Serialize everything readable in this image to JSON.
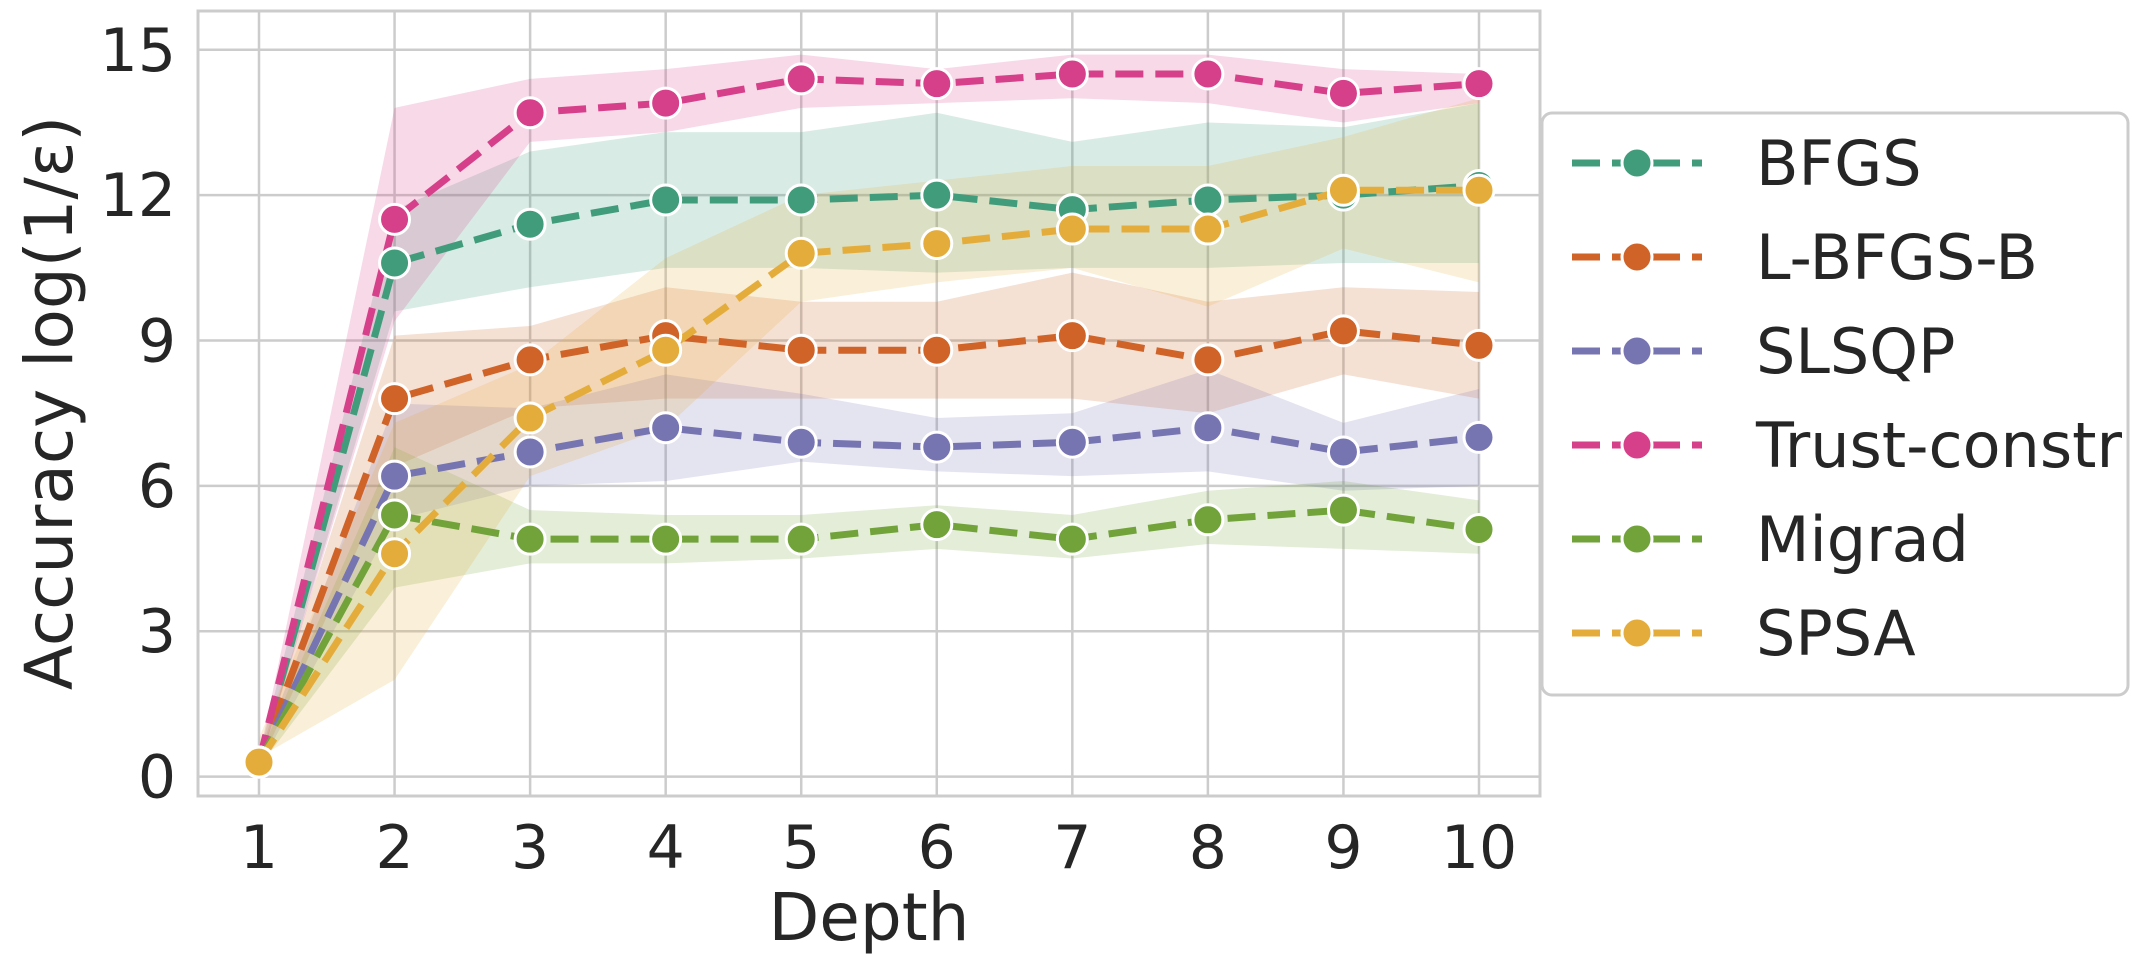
{
  "chart_data": {
    "type": "line",
    "title": "",
    "xlabel": "Depth",
    "ylabel": "Accuracy log(1/ε)",
    "x": [
      1,
      2,
      3,
      4,
      5,
      6,
      7,
      8,
      9,
      10
    ],
    "xticks": [
      "1",
      "2",
      "3",
      "4",
      "5",
      "6",
      "7",
      "8",
      "9",
      "10"
    ],
    "yticks": [
      "0",
      "3",
      "6",
      "9",
      "12",
      "15"
    ],
    "ytick_values": [
      0,
      3,
      6,
      9,
      12,
      15
    ],
    "xlim": [
      0.55,
      10.45
    ],
    "ylim": [
      -0.4,
      15.8
    ],
    "grid": true,
    "legend_position": "right",
    "series": [
      {
        "name": "BFGS",
        "color": "#419c7c",
        "values": [
          0.3,
          10.6,
          11.4,
          11.9,
          11.9,
          12.0,
          11.7,
          11.9,
          12.0,
          12.2
        ],
        "lower": [
          0.2,
          9.6,
          10.1,
          10.5,
          10.5,
          10.4,
          10.5,
          10.5,
          10.6,
          10.6
        ],
        "upper": [
          0.4,
          11.7,
          12.9,
          13.3,
          13.3,
          13.7,
          13.1,
          13.5,
          13.4,
          13.9
        ]
      },
      {
        "name": "L-BFGS-B",
        "color": "#cf6328",
        "values": [
          0.3,
          7.8,
          8.6,
          9.1,
          8.8,
          8.8,
          9.1,
          8.6,
          9.2,
          8.9
        ],
        "lower": [
          0.2,
          6.4,
          7.6,
          7.8,
          7.8,
          7.8,
          7.8,
          7.5,
          8.3,
          7.8
        ],
        "upper": [
          0.4,
          9.1,
          9.3,
          10.1,
          9.8,
          9.8,
          10.4,
          9.8,
          10.1,
          10.0
        ]
      },
      {
        "name": "SLSQP",
        "color": "#7774b2",
        "values": [
          0.3,
          6.2,
          6.7,
          7.2,
          6.9,
          6.8,
          6.9,
          7.2,
          6.7,
          7.0
        ],
        "lower": [
          0.2,
          5.3,
          6.0,
          6.1,
          6.5,
          6.3,
          6.2,
          6.3,
          5.9,
          6.0
        ],
        "upper": [
          0.4,
          7.7,
          7.6,
          8.3,
          7.9,
          7.4,
          7.5,
          8.4,
          7.3,
          8.0
        ]
      },
      {
        "name": "Trust-constr",
        "color": "#d63f8a",
        "values": [
          0.3,
          11.5,
          13.7,
          13.9,
          14.4,
          14.3,
          14.5,
          14.5,
          14.1,
          14.3
        ],
        "lower": [
          0.2,
          9.4,
          13.1,
          13.3,
          13.8,
          13.9,
          14.0,
          13.9,
          13.5,
          13.9
        ],
        "upper": [
          0.4,
          13.8,
          14.4,
          14.6,
          14.9,
          14.6,
          14.9,
          14.9,
          14.6,
          14.5
        ]
      },
      {
        "name": "Migrad",
        "color": "#71a33a",
        "values": [
          0.3,
          5.4,
          4.9,
          4.9,
          4.9,
          5.2,
          4.9,
          5.3,
          5.5,
          5.1
        ],
        "lower": [
          0.2,
          3.9,
          4.4,
          4.4,
          4.5,
          4.7,
          4.5,
          4.8,
          4.7,
          4.6
        ],
        "upper": [
          0.4,
          6.8,
          5.5,
          5.4,
          5.4,
          5.6,
          5.4,
          5.9,
          6.1,
          5.7
        ]
      },
      {
        "name": "SPSA",
        "color": "#e4ad3b",
        "values": [
          0.3,
          4.6,
          7.4,
          8.8,
          10.8,
          11.0,
          11.3,
          11.3,
          12.1,
          12.1
        ],
        "lower": [
          0.4,
          2.0,
          6.2,
          7.2,
          9.8,
          10.2,
          10.5,
          9.7,
          10.9,
          10.2
        ],
        "upper": [
          0.8,
          7.3,
          8.5,
          10.7,
          12.0,
          12.3,
          12.6,
          12.6,
          13.2,
          14.0
        ]
      }
    ]
  }
}
